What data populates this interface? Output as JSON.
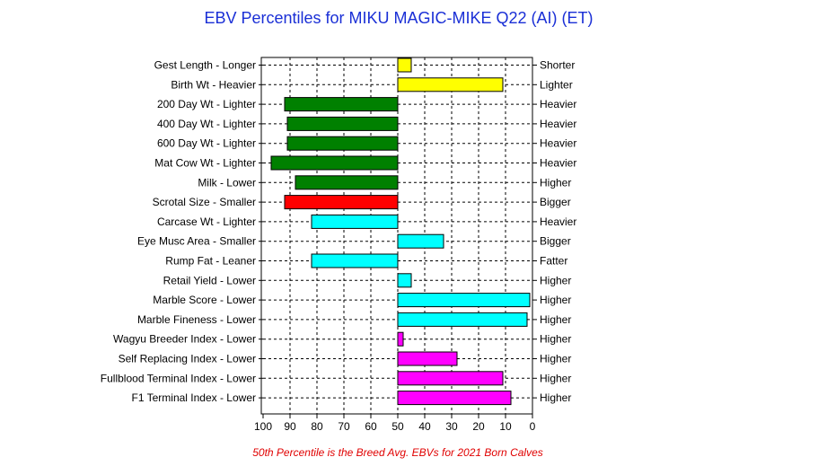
{
  "chart_data": {
    "type": "bar",
    "orientation": "horizontal",
    "title": "EBV Percentiles for MIKU MAGIC-MIKE Q22 (AI) (ET)",
    "footnote": "50th Percentile is the Breed Avg. EBVs for 2021 Born Calves",
    "xlim": [
      100,
      0
    ],
    "baseline": 50,
    "x_ticks": [
      "100",
      "90",
      "80",
      "70",
      "60",
      "50",
      "40",
      "30",
      "20",
      "10",
      "0"
    ],
    "grid": true,
    "categories": [
      "Gest Length - Longer",
      "Birth Wt - Heavier",
      "200 Day Wt - Lighter",
      "400 Day Wt - Lighter",
      "600 Day Wt - Lighter",
      "Mat Cow Wt - Lighter",
      "Milk - Lower",
      "Scrotal Size - Smaller",
      "Carcase Wt - Lighter",
      "Eye Musc Area - Smaller",
      "Rump Fat - Leaner",
      "Retail Yield - Lower",
      "Marble Score - Lower",
      "Marble Fineness - Lower",
      "Wagyu Breeder Index - Lower",
      "Self Replacing Index - Lower",
      "Fullblood Terminal Index - Lower",
      "F1 Terminal Index - Lower"
    ],
    "right_labels": [
      "Shorter",
      "Lighter",
      "Heavier",
      "Heavier",
      "Heavier",
      "Heavier",
      "Higher",
      "Bigger",
      "Heavier",
      "Bigger",
      "Fatter",
      "Higher",
      "Higher",
      "Higher",
      "Higher",
      "Higher",
      "Higher",
      "Higher"
    ],
    "values": [
      45,
      11,
      92,
      91,
      91,
      97,
      88,
      92,
      82,
      33,
      82,
      45,
      1,
      2,
      48,
      28,
      11,
      8
    ],
    "colors": [
      "#ffff00",
      "#ffff00",
      "#008000",
      "#008000",
      "#008000",
      "#008000",
      "#008000",
      "#ff0000",
      "#00ffff",
      "#00ffff",
      "#00ffff",
      "#00ffff",
      "#00ffff",
      "#00ffff",
      "#ff00ff",
      "#ff00ff",
      "#ff00ff",
      "#ff00ff"
    ]
  }
}
